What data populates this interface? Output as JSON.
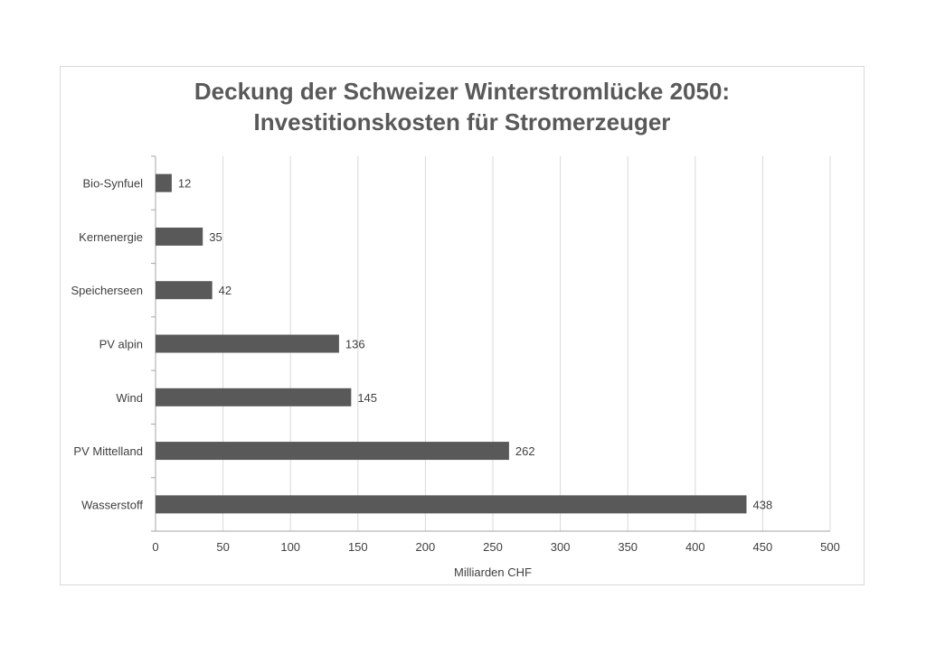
{
  "chart_data": {
    "type": "bar",
    "orientation": "horizontal",
    "title_lines": [
      "Deckung der Schweizer Winterstromlücke 2050:",
      "Investitionskosten für Stromerzeuger"
    ],
    "categories": [
      "Bio-Synfuel",
      "Kernenergie",
      "Speicherseen",
      "PV alpin",
      "Wind",
      "PV Mittelland",
      "Wasserstoff"
    ],
    "values": [
      12,
      35,
      42,
      136,
      145,
      262,
      438
    ],
    "xlabel": "Milliarden CHF",
    "ylabel": "",
    "xlim": [
      0,
      500
    ],
    "xticks": [
      0,
      50,
      100,
      150,
      200,
      250,
      300,
      350,
      400,
      450,
      500
    ],
    "grid": "vertical",
    "legend": "none",
    "bar_color": "#595959"
  }
}
